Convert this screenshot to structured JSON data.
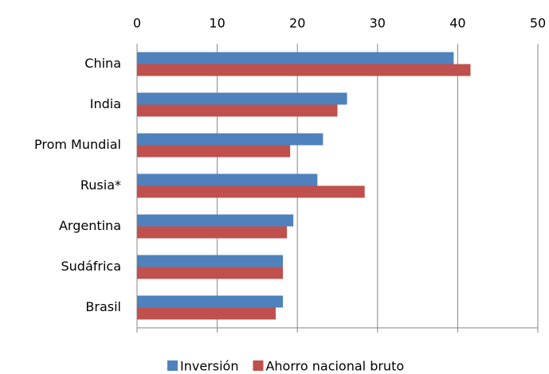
{
  "chart_data": {
    "type": "hbar",
    "categories": [
      "China",
      "India",
      "Prom Mundial",
      "Rusia*",
      "Argentina",
      "Sudáfrica",
      "Brasil"
    ],
    "series": [
      {
        "name": "Inversión",
        "color": "#4f81bd",
        "values": [
          39.5,
          26.2,
          23.2,
          22.5,
          19.5,
          18.2,
          18.2
        ]
      },
      {
        "name": "Ahorro nacional bruto",
        "color": "#c0504d",
        "values": [
          41.6,
          25.0,
          19.1,
          28.4,
          18.7,
          18.2,
          17.3
        ]
      }
    ],
    "xlim": [
      0,
      50
    ],
    "xticks": [
      0,
      10,
      20,
      30,
      40,
      50
    ],
    "grid": true,
    "legend": "bottom"
  }
}
